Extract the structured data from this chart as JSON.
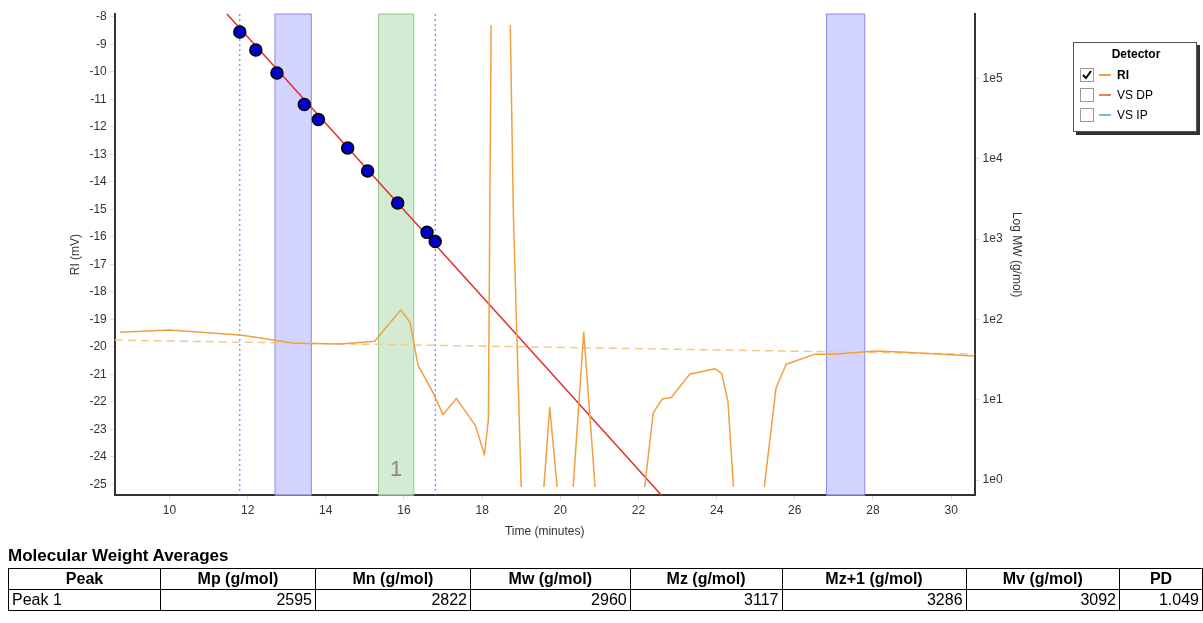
{
  "chart_data": [
    {
      "type": "line",
      "xlabel": "Time (minutes)",
      "ylabel": "RI (mV)",
      "y2label": "Log MW (g/mol)",
      "legend_title": "Detector",
      "legend": "right",
      "grid": false,
      "log": "y2",
      "marker": "none",
      "xlim": [
        8.6,
        30.6
      ],
      "xticks": [
        10,
        12,
        14,
        16,
        18,
        20,
        22,
        24,
        26,
        28,
        30
      ],
      "ylim": [
        -25.4,
        -7.9
      ],
      "yticks": [
        -8,
        -9,
        -10,
        -11,
        -12,
        -13,
        -14,
        -15,
        -16,
        -17,
        -18,
        -19,
        -20,
        -21,
        -22,
        -23,
        -24,
        -25
      ],
      "y2lim": [
        0.65,
        630000
      ],
      "y2ticks": [
        {
          "value": 1,
          "label": "1e0"
        },
        {
          "value": 10,
          "label": "1e1"
        },
        {
          "value": 100,
          "label": "1e2"
        },
        {
          "value": 1000,
          "label": "1e3"
        },
        {
          "value": 10000,
          "label": "1e4"
        },
        {
          "value": 100000,
          "label": "1e5"
        }
      ],
      "series": [
        {
          "name": "RI",
          "color": "#f0a040",
          "x": [
            8.74,
            10,
            11.8,
            13.19,
            14.38,
            15.25,
            15.92,
            16.15,
            16.36,
            16.74,
            17.0,
            17.34,
            17.83,
            18.06,
            18.16,
            18.23,
            18.45,
            18.72,
            18.8,
            19.0,
            19.3,
            19.58,
            19.73,
            19.92,
            20.15,
            20.33,
            20.6,
            20.89,
            21.5,
            22.16,
            22.38,
            22.61,
            22.84,
            23.31,
            23.95,
            24.13,
            24.29,
            24.43,
            24.8,
            25.22,
            25.52,
            25.78,
            26.52,
            26.99,
            28.09,
            28.82,
            30.57
          ],
          "values": [
            -19.47,
            -19.39,
            -19.57,
            -19.87,
            -19.9,
            -19.8,
            -18.66,
            -19.1,
            -20.67,
            -21.66,
            -22.47,
            -21.88,
            -22.87,
            -23.93,
            -22.65,
            -8.3,
            null,
            -8.3,
            -15.2,
            -25.1,
            null,
            -25.1,
            -22.2,
            -25.1,
            null,
            -25.1,
            -19.47,
            -25.1,
            null,
            -25.1,
            -22.4,
            -21.9,
            -21.85,
            -21.0,
            -20.8,
            -20.97,
            -22.0,
            -25.1,
            null,
            -25.1,
            -21.5,
            -20.64,
            -20.27,
            -20.27,
            -20.16,
            -20.2,
            -20.34
          ]
        },
        {
          "type": "line",
          "color": "#f5c88a",
          "line_style": "dashed",
          "x": [
            8.6,
            30.6
          ],
          "values": [
            -19.76,
            -20.27
          ]
        },
        {
          "name": "VS DP",
          "color": "#e8825a"
        },
        {
          "name": "VS IP",
          "color": "#7ab8cc"
        },
        {
          "type": "scatter",
          "axis": "y2",
          "marker": "circle",
          "color": "#0000cc",
          "x": [
            11.8,
            12.21,
            12.75,
            13.45,
            13.81,
            14.56,
            15.07,
            15.84,
            16.59,
            16.8
          ],
          "values": [
            377000,
            224000,
            116000,
            47200,
            30600,
            13600,
            7000,
            2800,
            1210,
            930
          ]
        },
        {
          "type": "line",
          "axis": "y2",
          "color": "#e03030",
          "x": [
            11.47,
            22.59
          ],
          "values": [
            630000,
            0.65
          ]
        }
      ],
      "bands": [
        {
          "axis": "x",
          "from": 12.7,
          "to": 13.63,
          "color": "#c8c8ff"
        },
        {
          "axis": "x",
          "from": 15.35,
          "to": 16.25,
          "label": "1",
          "color": "#c8e6c8"
        },
        {
          "axis": "x",
          "from": 26.81,
          "to": 27.79,
          "color": "#c8c8ff"
        }
      ],
      "ref_lines": [
        {
          "axis": "x",
          "value": 11.8,
          "color": "#6060ff",
          "line_style": "dotted"
        },
        {
          "axis": "x",
          "value": 16.8,
          "color": "#6060ff",
          "line_style": "dotted"
        }
      ]
    },
    {
      "type": "other",
      "title": "Molecular Weight Averages",
      "data_labels": true,
      "categories": [
        "Peak",
        "Mp (g/mol)",
        "Mn (g/mol)",
        "Mw (g/mol)",
        "Mz (g/mol)",
        "Mz+1 (g/mol)",
        "Mv (g/mol)",
        "PD"
      ],
      "series": [
        {
          "name": "Peak 1",
          "values": [
            null,
            2595,
            2822,
            2960,
            3117,
            3286,
            3092,
            1.049
          ]
        }
      ]
    }
  ]
}
